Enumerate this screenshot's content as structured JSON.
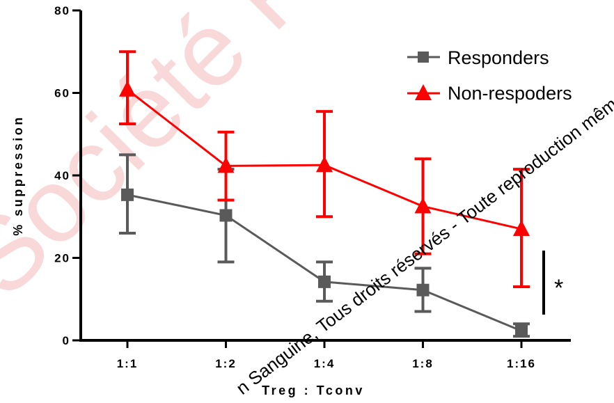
{
  "chart_data": {
    "type": "line",
    "categories": [
      "1:1",
      "1:2",
      "1:4",
      "1:8",
      "1:16"
    ],
    "xlabel": "Treg : Tconv",
    "ylabel": "% suppression",
    "ylim": [
      0,
      80
    ],
    "yticks": [
      0,
      20,
      40,
      60,
      80
    ],
    "series": [
      {
        "name": "Responders",
        "color": "#5a5a5a",
        "marker": "square",
        "values": [
          35.3,
          30.3,
          14.2,
          12.2,
          2.3
        ],
        "err_low": [
          26,
          19,
          9.5,
          7,
          1
        ],
        "err_high": [
          45,
          41.5,
          19,
          17.5,
          4
        ]
      },
      {
        "name": "Non-respoders",
        "color": "#ff0000",
        "marker": "triangle",
        "values": [
          60.8,
          42.3,
          42.5,
          32.5,
          27
        ],
        "err_low": [
          52.5,
          34,
          30,
          21,
          13
        ],
        "err_high": [
          70,
          50.5,
          55.5,
          44,
          41.5
        ]
      }
    ],
    "legend_position": "top-right",
    "annotation": "*",
    "grid": false
  },
  "watermark": {
    "text": "Société Française d'Hématologie – Transfusion Sanguine, Tous droits réservés - Toute reproduction même",
    "visible_text": "n Sanguine, Tous droits réservés - Toute reproduction même",
    "background_text": "Société Française"
  }
}
